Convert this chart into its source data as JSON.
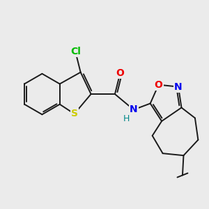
{
  "bg_color": "#ebebeb",
  "bond_color": "#1a1a1a",
  "bond_width": 1.4,
  "atoms": {
    "S": {
      "color": "#cccc00",
      "fontsize": 10,
      "fontweight": "bold"
    },
    "N": {
      "color": "#0000ee",
      "fontsize": 10,
      "fontweight": "bold"
    },
    "O": {
      "color": "#ee0000",
      "fontsize": 10,
      "fontweight": "bold"
    },
    "Cl": {
      "color": "#00bb00",
      "fontsize": 10,
      "fontweight": "bold"
    },
    "H": {
      "color": "#008888",
      "fontsize": 9,
      "fontweight": "normal"
    }
  },
  "figsize": [
    3.0,
    3.0
  ],
  "dpi": 100
}
